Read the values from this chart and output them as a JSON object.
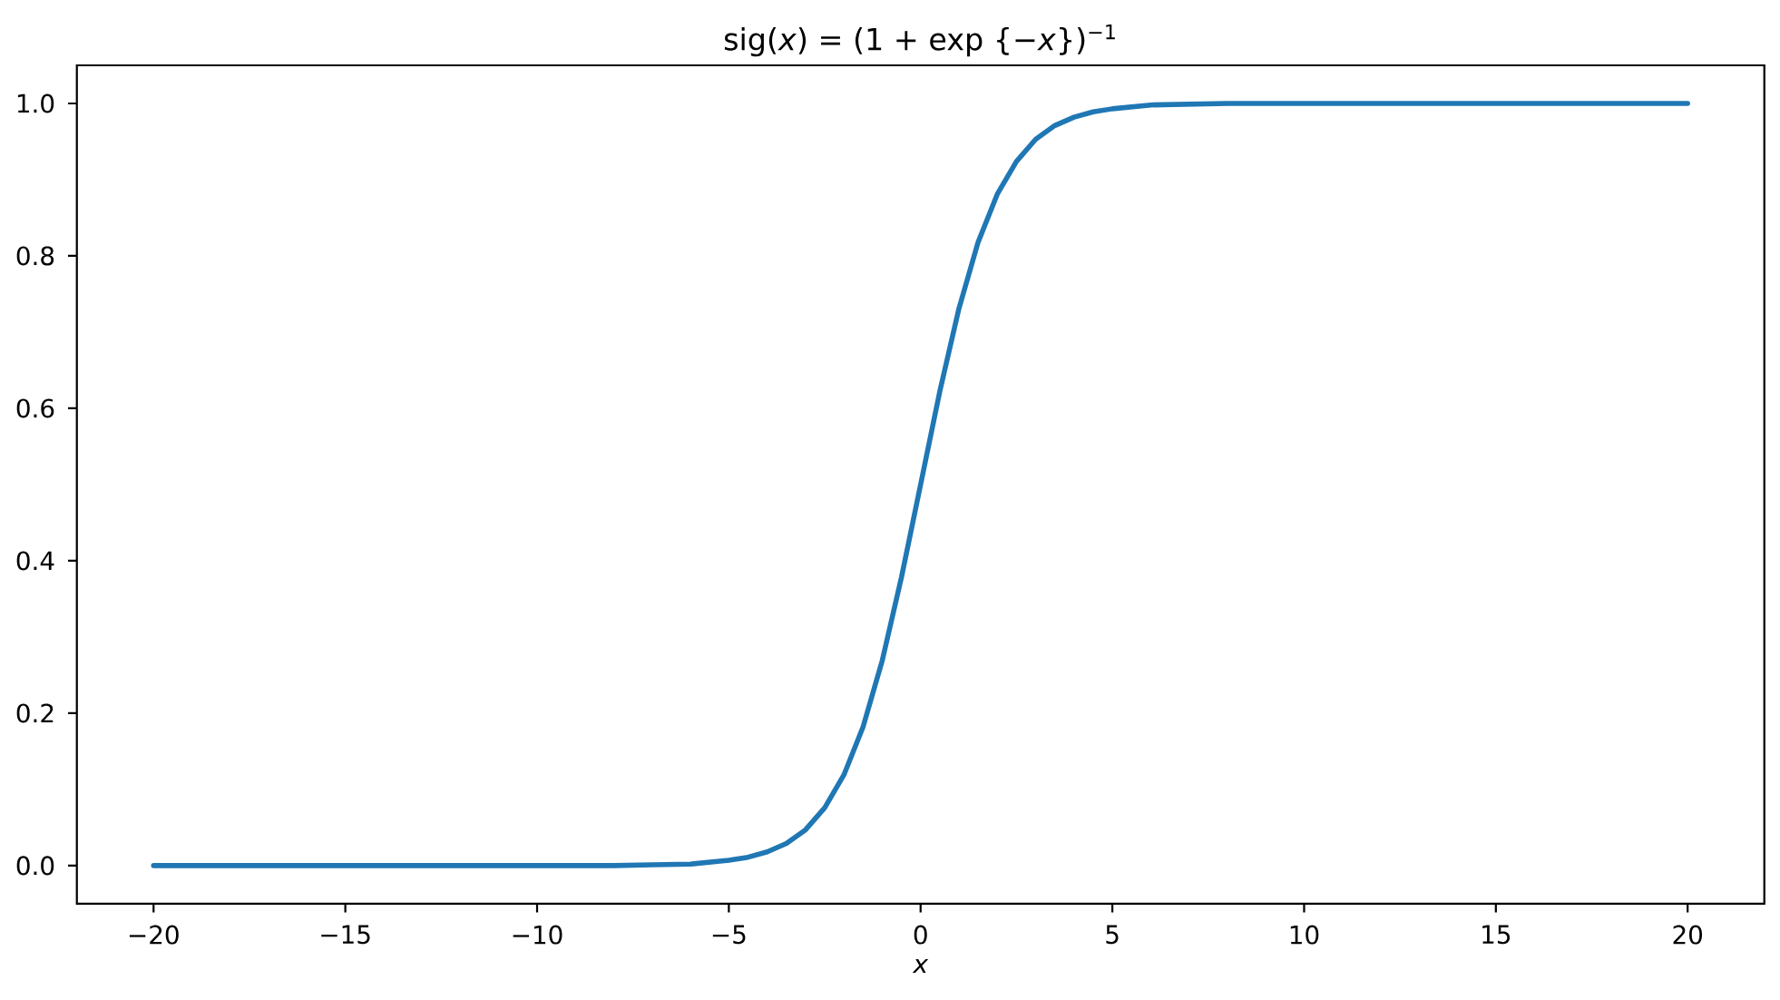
{
  "chart_data": {
    "type": "line",
    "title": "sig(*x*) = (1 + exp {−*x*})$^{−1}$",
    "xlabel": "x",
    "x": [
      -20,
      -15,
      -10,
      -8,
      -7,
      -6,
      -5,
      -4.5,
      -4,
      -3.5,
      -3,
      -2.5,
      -2,
      -1.5,
      -1,
      -0.5,
      0,
      0.5,
      1,
      1.5,
      2,
      2.5,
      3,
      3.5,
      4,
      4.5,
      5,
      6,
      7,
      8,
      10,
      15,
      20
    ],
    "values": [
      0.0,
      0.0,
      0.0,
      0.0,
      0.001,
      0.002,
      0.007,
      0.011,
      0.018,
      0.029,
      0.047,
      0.076,
      0.119,
      0.182,
      0.269,
      0.378,
      0.5,
      0.622,
      0.731,
      0.818,
      0.881,
      0.924,
      0.953,
      0.971,
      0.982,
      0.989,
      0.993,
      0.998,
      0.999,
      1.0,
      1.0,
      1.0,
      1.0
    ],
    "color": "#1f77b4",
    "xlim": [
      -22,
      22
    ],
    "ylim": [
      -0.05,
      1.05
    ],
    "xticks": [
      {
        "value": -20,
        "label": "−20"
      },
      {
        "value": -15,
        "label": "−15"
      },
      {
        "value": -10,
        "label": "−10"
      },
      {
        "value": -5,
        "label": "−5"
      },
      0,
      5,
      10,
      15,
      20
    ],
    "yticks": [
      {
        "value": 0,
        "label": "0.0"
      },
      {
        "value": 0.2,
        "label": "0.2"
      },
      {
        "value": 0.4,
        "label": "0.4"
      },
      {
        "value": 0.6,
        "label": "0.6"
      },
      {
        "value": 0.8,
        "label": "0.8"
      },
      {
        "value": 1.0,
        "label": "1.0"
      }
    ]
  }
}
